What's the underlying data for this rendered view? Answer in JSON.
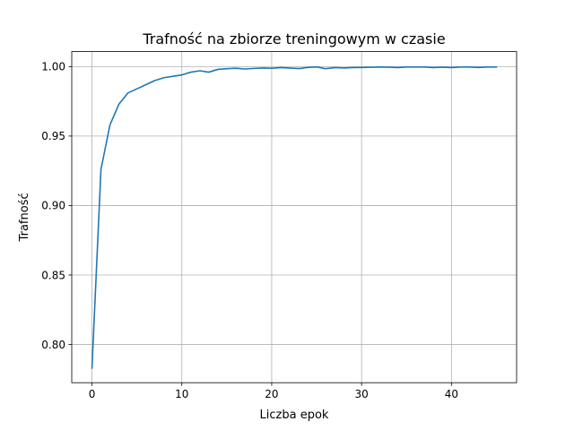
{
  "chart_data": {
    "type": "line",
    "title": "Trafność na zbiorze treningowym w czasie",
    "xlabel": "Liczba epok",
    "ylabel": "Trafność",
    "xlim": [
      -2.25,
      47.25
    ],
    "ylim": [
      0.7725,
      1.0108
    ],
    "grid": true,
    "xticks": [
      0,
      10,
      20,
      30,
      40
    ],
    "xtick_labels": [
      "0",
      "10",
      "20",
      "30",
      "40"
    ],
    "yticks": [
      0.8,
      0.85,
      0.9,
      0.95,
      1.0
    ],
    "ytick_labels": [
      "0.80",
      "0.85",
      "0.90",
      "0.95",
      "1.00"
    ],
    "line_color": "#1f77b4",
    "series": [
      {
        "name": "Trafność",
        "x": [
          0,
          1,
          2,
          3,
          4,
          5,
          6,
          7,
          8,
          9,
          10,
          11,
          12,
          13,
          14,
          15,
          16,
          17,
          18,
          19,
          20,
          21,
          22,
          23,
          24,
          25,
          26,
          27,
          28,
          29,
          30,
          31,
          32,
          33,
          34,
          35,
          36,
          37,
          38,
          39,
          40,
          41,
          42,
          43,
          44,
          45
        ],
        "values": [
          0.783,
          0.926,
          0.958,
          0.973,
          0.981,
          0.984,
          0.987,
          0.99,
          0.992,
          0.993,
          0.994,
          0.996,
          0.997,
          0.996,
          0.998,
          0.9985,
          0.9988,
          0.9983,
          0.9987,
          0.999,
          0.9988,
          0.9993,
          0.999,
          0.9986,
          0.9994,
          0.9998,
          0.9985,
          0.9993,
          0.999,
          0.9993,
          0.9994,
          0.9995,
          0.9997,
          0.9996,
          0.9993,
          0.9997,
          0.9997,
          0.9997,
          0.9993,
          0.9996,
          0.9993,
          0.9997,
          0.9997,
          0.9994,
          0.9997,
          0.9997
        ]
      }
    ]
  }
}
